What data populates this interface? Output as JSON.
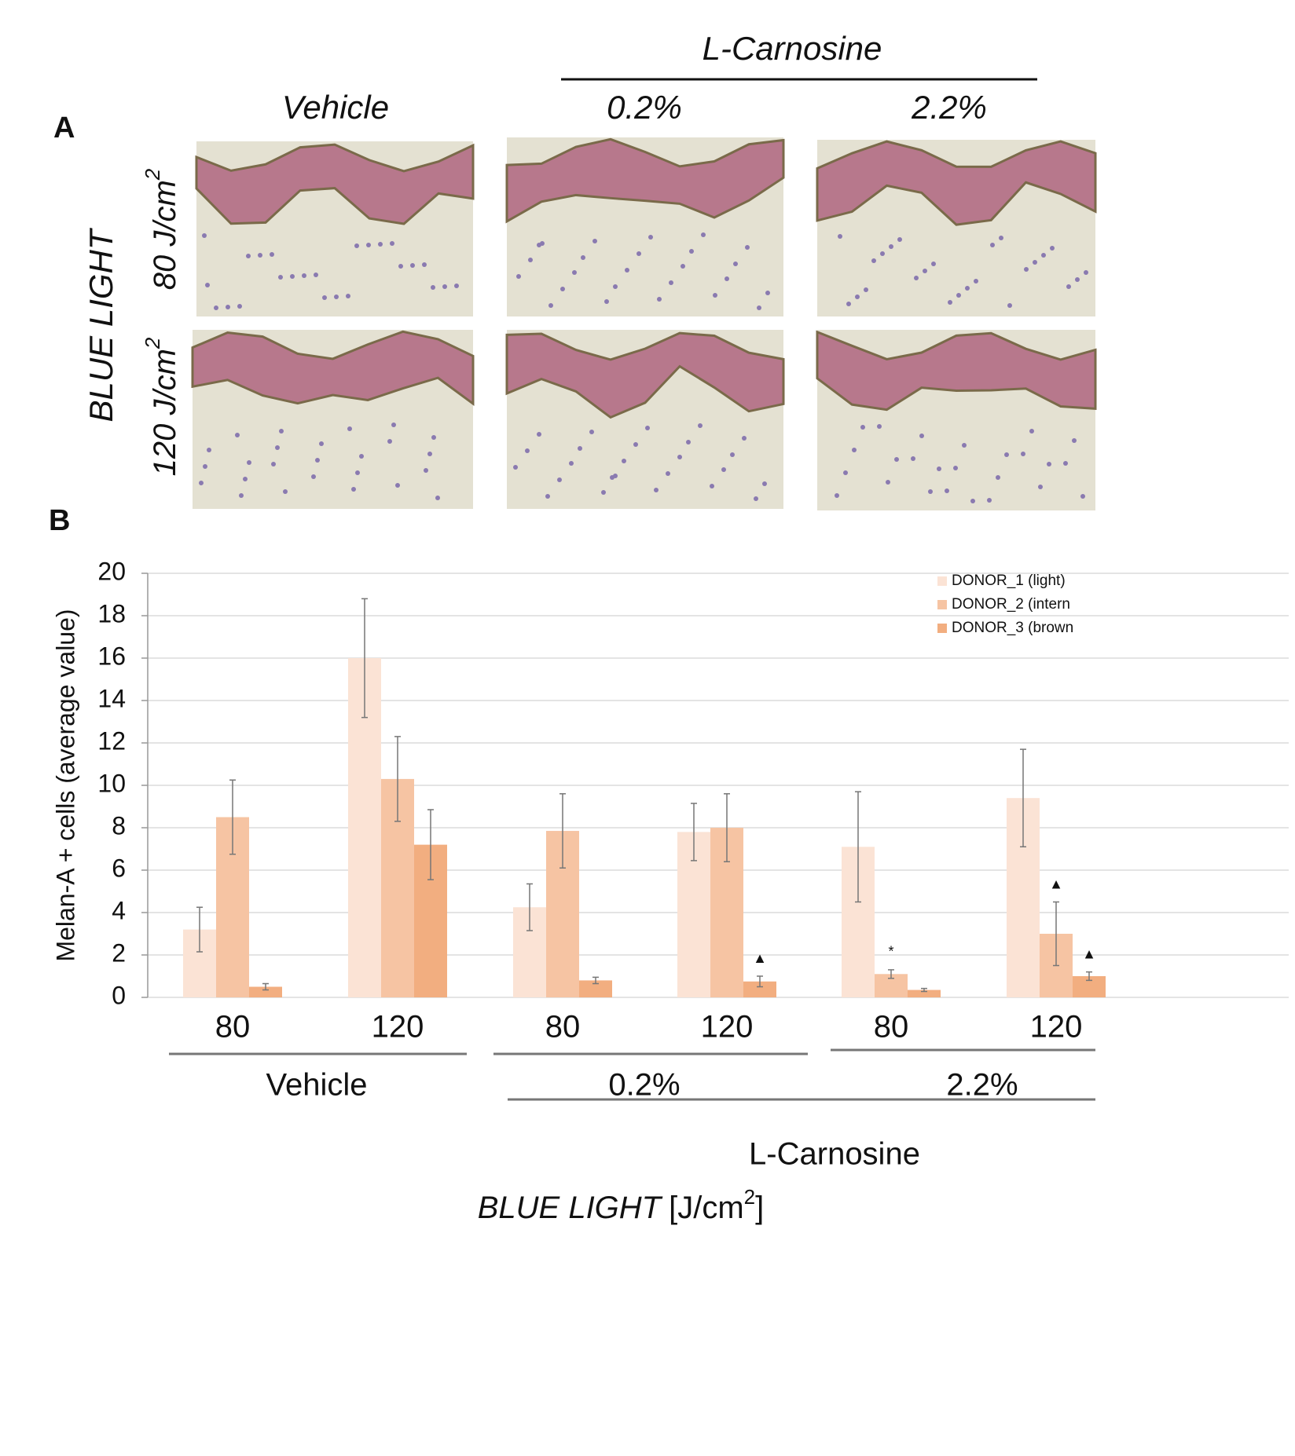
{
  "panel_a": {
    "label": "A",
    "group_title": "L-Carnosine",
    "columns": [
      "Vehicle",
      "0.2%",
      "2.2%"
    ],
    "row_title": "BLUE LIGHT",
    "rows": [
      {
        "text": "80 J/cm",
        "sup": "2"
      },
      {
        "text": "120 J/cm",
        "sup": "2"
      }
    ]
  },
  "chart_data": {
    "type": "bar",
    "panel_label": "B",
    "y_label": "Melan-A + cells (average value)",
    "x_label": {
      "italic": "BLUE LIGHT",
      "text": "[J/cm",
      "sup": "2",
      "end": "]"
    },
    "categories": [
      "80",
      "120",
      "80",
      "120",
      "80",
      "120"
    ],
    "groups": [
      "Vehicle",
      "0.2%",
      "2.2%"
    ],
    "super_group": "L-Carnosine",
    "series": [
      {
        "name": "DONOR_1 (light)",
        "color": "#fbe3d5",
        "values": [
          3.2,
          16.0,
          4.25,
          7.8,
          7.1,
          9.4
        ],
        "errors": [
          1.05,
          2.8,
          1.1,
          1.35,
          2.6,
          2.3
        ],
        "annotations": [
          null,
          null,
          null,
          null,
          null,
          null
        ]
      },
      {
        "name": "DONOR_2 (intern",
        "color": "#f6c4a3",
        "values": [
          8.5,
          10.3,
          7.85,
          8.0,
          1.1,
          3.0
        ],
        "errors": [
          1.75,
          2.0,
          1.75,
          1.6,
          0.2,
          1.5
        ],
        "annotations": [
          null,
          null,
          null,
          null,
          "*",
          "▲"
        ]
      },
      {
        "name": "DONOR_3 (brown",
        "color": "#f2ae80",
        "values": [
          0.5,
          7.2,
          0.8,
          0.75,
          0.35,
          1.0
        ],
        "errors": [
          0.15,
          1.65,
          0.15,
          0.25,
          0.07,
          0.2
        ],
        "annotations": [
          null,
          null,
          null,
          "▲",
          null,
          "▲"
        ]
      }
    ],
    "ylim": [
      0,
      20
    ],
    "yticks": [
      0,
      2,
      4,
      6,
      8,
      10,
      12,
      14,
      16,
      18,
      20
    ],
    "grid": true
  }
}
